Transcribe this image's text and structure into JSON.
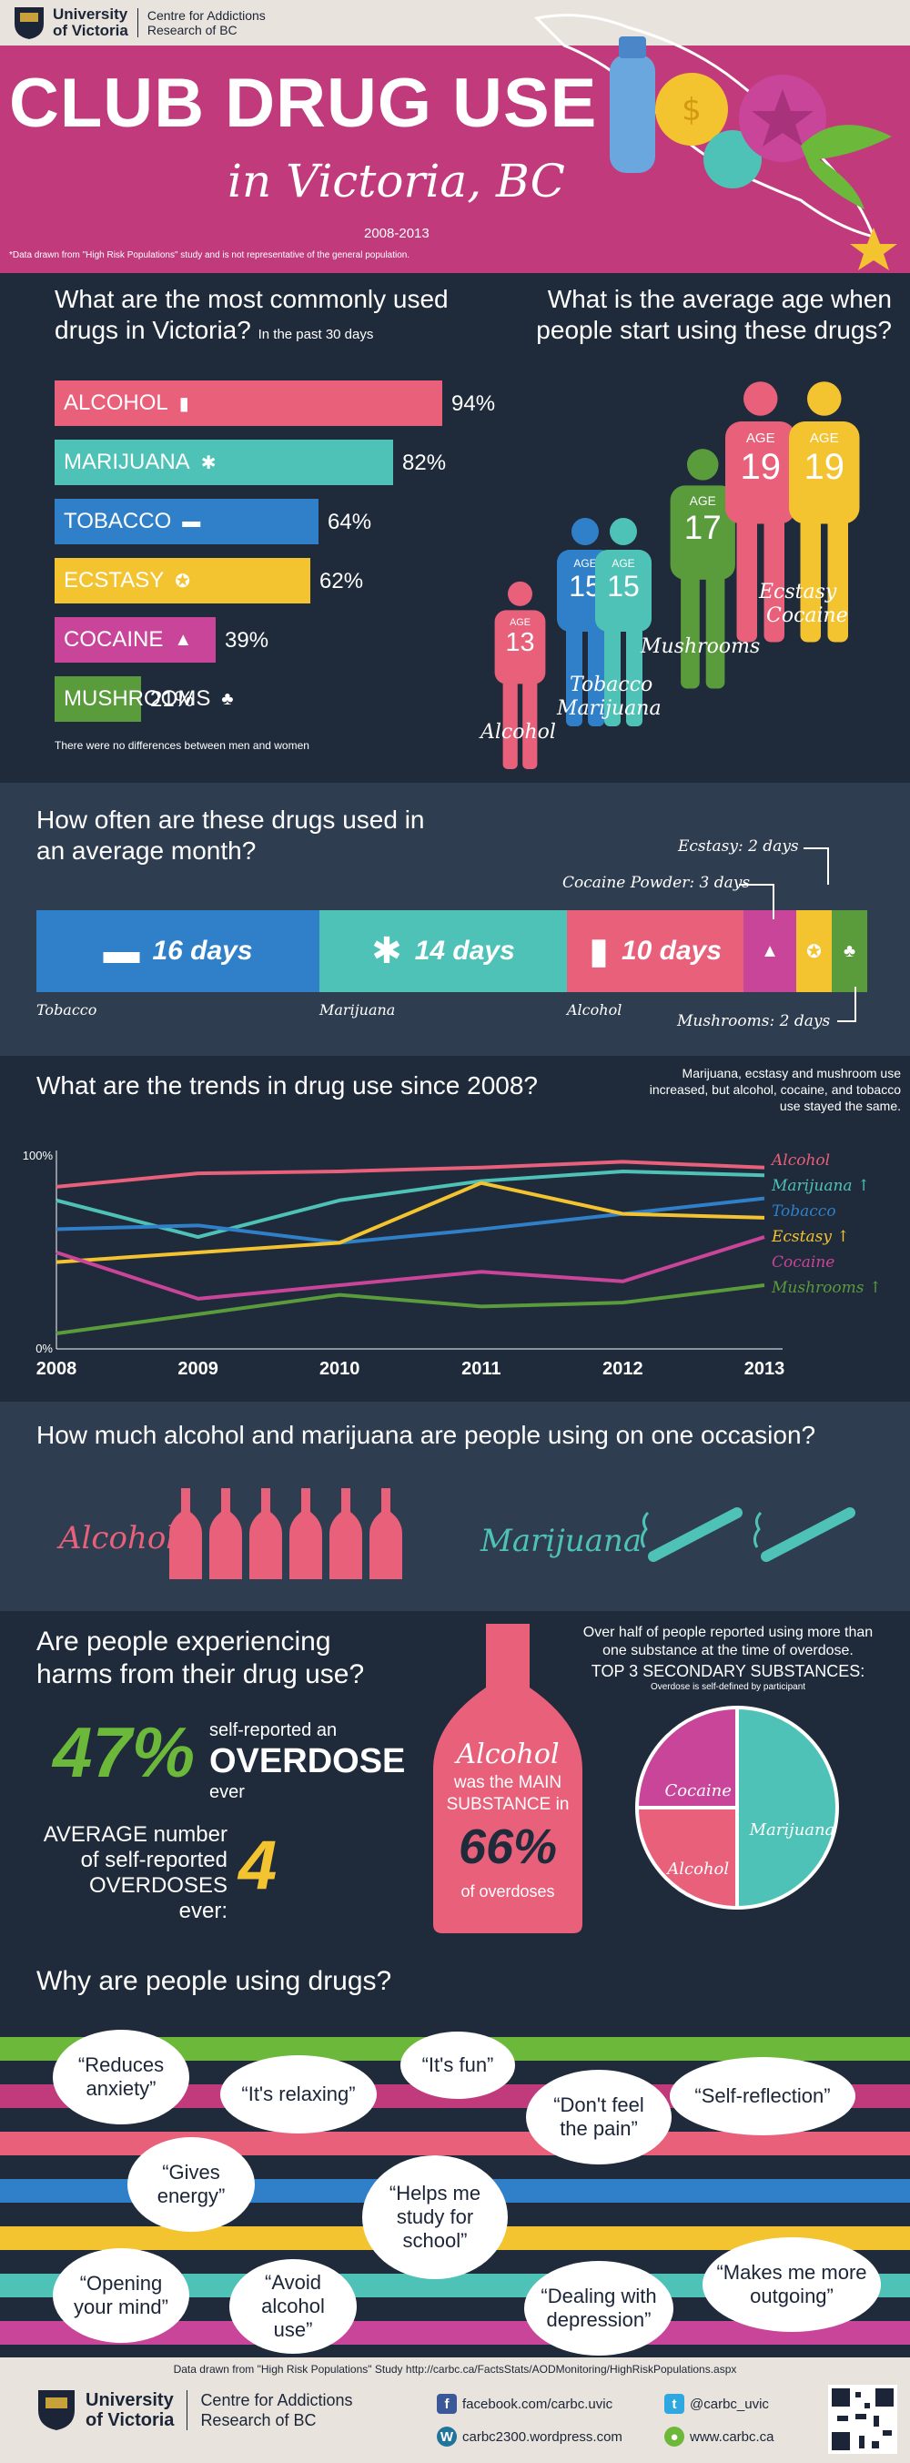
{
  "header": {
    "uvic_name_line1": "University",
    "uvic_name_line2": "of Victoria",
    "carbc_line1": "Centre for Addictions",
    "carbc_line2": "Research of BC",
    "title": "CLUB DRUG USE",
    "subtitle": "in Victoria, BC",
    "years": "2008-2013",
    "note": "*Data drawn from \"High Risk Populations\" study and is not representative of the general population."
  },
  "usage": {
    "title_line1": "What are the most commonly used",
    "title_line2": "drugs in Victoria?",
    "period": "In the past 30 days",
    "note": "There were no differences between men and women",
    "items": [
      {
        "label": "ALCOHOL",
        "percent": 94,
        "display": "94%",
        "color": "#e8607a",
        "icon": "bottle-icon"
      },
      {
        "label": "MARIJUANA",
        "percent": 82,
        "display": "82%",
        "color": "#4ec2b6",
        "icon": "leaf-icon"
      },
      {
        "label": "TOBACCO",
        "percent": 64,
        "display": "64%",
        "color": "#2f80c8",
        "icon": "cigarette-icon"
      },
      {
        "label": "ECSTASY",
        "percent": 62,
        "display": "62%",
        "color": "#f4c330",
        "icon": "pill-icon"
      },
      {
        "label": "COCAINE",
        "percent": 39,
        "display": "39%",
        "color": "#c8459a",
        "icon": "powder-icon"
      },
      {
        "label": "MUSHROOMS",
        "percent": 21,
        "display": "21%",
        "color": "#5a9b3c",
        "icon": "mushroom-icon"
      }
    ]
  },
  "age": {
    "title_line1": "What is the average age when",
    "title_line2": "people start using these drugs?",
    "age_word": "AGE",
    "people": [
      {
        "age": "13",
        "color": "#e8607a",
        "label": "Alcohol"
      },
      {
        "age": "15",
        "color": "#2f80c8",
        "label": ""
      },
      {
        "age": "15",
        "color": "#4ec2b6",
        "label": ""
      },
      {
        "age": "17",
        "color": "#5a9b3c",
        "label": "Mushrooms"
      },
      {
        "age": "19",
        "color": "#e8607a",
        "label": ""
      },
      {
        "age": "19",
        "color": "#f4c330",
        "label": ""
      }
    ],
    "label_tobacco": "Tobacco",
    "label_marijuana": "Marijuana",
    "label_ecstasy": "Ecstasy",
    "label_cocaine": "Cocaine"
  },
  "frequency": {
    "title_line1": "How often are these drugs used in",
    "title_line2": "an average month?",
    "segments": [
      {
        "name": "Tobacco",
        "days": 16,
        "display": "16 days",
        "color": "#2f80c8",
        "icon": "cigarette-icon"
      },
      {
        "name": "Marijuana",
        "days": 14,
        "display": "14 days",
        "color": "#4ec2b6",
        "icon": "leaf-icon"
      },
      {
        "name": "Alcohol",
        "days": 10,
        "display": "10 days",
        "color": "#e8607a",
        "icon": "bottle-icon"
      },
      {
        "name": "Cocaine Powder",
        "days": 3,
        "display": "",
        "color": "#c8459a",
        "icon": "powder-icon"
      },
      {
        "name": "Ecstasy",
        "days": 2,
        "display": "",
        "color": "#f4c330",
        "icon": "pill-icon"
      },
      {
        "name": "Mushrooms",
        "days": 2,
        "display": "",
        "color": "#5a9b3c",
        "icon": "mushroom-icon"
      }
    ],
    "callout_ecstasy": "Ecstasy: 2 days",
    "callout_cocaine": "Cocaine Powder: 3 days",
    "callout_mushrooms": "Mushrooms: 2 days"
  },
  "trends": {
    "title": "What are the trends in drug use since 2008?",
    "note": "Marijuana, ecstasy and mushroom use increased, but alcohol, cocaine, and tobacco use stayed the same.",
    "chart_data": {
      "type": "line",
      "x": [
        "2008",
        "2009",
        "2010",
        "2011",
        "2012",
        "2013"
      ],
      "ylim": [
        0,
        100
      ],
      "ytick_labels": [
        "100%",
        "0%"
      ],
      "series": [
        {
          "name": "Alcohol",
          "arrow": "",
          "color": "#e8607a",
          "values": [
            84,
            91,
            92,
            94,
            97,
            94
          ]
        },
        {
          "name": "Marijuana",
          "arrow": "↑",
          "color": "#4ec2b6",
          "values": [
            77,
            58,
            77,
            87,
            92,
            90
          ]
        },
        {
          "name": "Tobacco",
          "arrow": "",
          "color": "#2f80c8",
          "values": [
            62,
            64,
            55,
            62,
            70,
            78
          ]
        },
        {
          "name": "Ecstasy",
          "arrow": "↑",
          "color": "#f4c330",
          "values": [
            45,
            50,
            55,
            86,
            70,
            68
          ]
        },
        {
          "name": "Cocaine",
          "arrow": "",
          "color": "#c8459a",
          "values": [
            50,
            26,
            33,
            40,
            35,
            58
          ]
        },
        {
          "name": "Mushrooms",
          "arrow": "↑",
          "color": "#5a9b3c",
          "values": [
            8,
            18,
            28,
            22,
            24,
            33
          ]
        }
      ]
    }
  },
  "occasion": {
    "title": "How much alcohol and marijuana are people using on one occasion?",
    "alcohol_label": "Alcohol",
    "alcohol_units": 6,
    "marijuana_label": "Marijuana",
    "marijuana_units": 2
  },
  "harms": {
    "title_line1": "Are people experiencing",
    "title_line2": "harms from their drug use?",
    "overdose_pct": "47%",
    "self_reported": "self-reported an",
    "overdose_word": "OVERDOSE",
    "ever": "ever",
    "avg_line1": "AVERAGE number",
    "avg_line2": "of self-reported",
    "avg_line3": "OVERDOSES ever:",
    "avg_value": "4",
    "bottle_alcohol": "Alcohol",
    "bottle_was": "was the MAIN",
    "bottle_substance": "SUBSTANCE in",
    "bottle_pct": "66%",
    "bottle_of": "of overdoses",
    "over_half_line1": "Over half of people reported using more than",
    "over_half_line2": "one substance at the time of overdose.",
    "top3": "TOP 3 SECONDARY SUBSTANCES:",
    "top3_note": "Overdose is self-defined by participant",
    "pie_data": {
      "type": "pie",
      "slices": [
        {
          "label": "Marijuana",
          "value": 50,
          "color": "#4ec2b6"
        },
        {
          "label": "Alcohol",
          "value": 25,
          "color": "#e8607a"
        },
        {
          "label": "Cocaine",
          "value": 25,
          "color": "#c8459a"
        }
      ]
    }
  },
  "reasons": {
    "title": "Why are people using drugs?",
    "quotes": [
      "“Reduces anxiety”",
      "“It's relaxing”",
      "“It's fun”",
      "“Don't feel the pain”",
      "“Self-reflection”",
      "“Gives energy”",
      "“Helps me study for school”",
      "“Opening your mind”",
      "“Avoid alcohol use”",
      "“Dealing with depression”",
      "“Makes me more outgoing”"
    ]
  },
  "footer": {
    "source": "Data drawn from \"High Risk Populations\" Study   http://carbc.ca/FactsStats/AODMonitoring/HighRiskPopulations.aspx",
    "uvic_line1": "University",
    "uvic_line2": "of Victoria",
    "carbc_line1": "Centre for Addictions",
    "carbc_line2": "Research of BC",
    "facebook": "facebook.com/carbc.uvic",
    "twitter": "@carbc_uvic",
    "wordpress": "carbc2300.wordpress.com",
    "web": "www.carbc.ca"
  }
}
